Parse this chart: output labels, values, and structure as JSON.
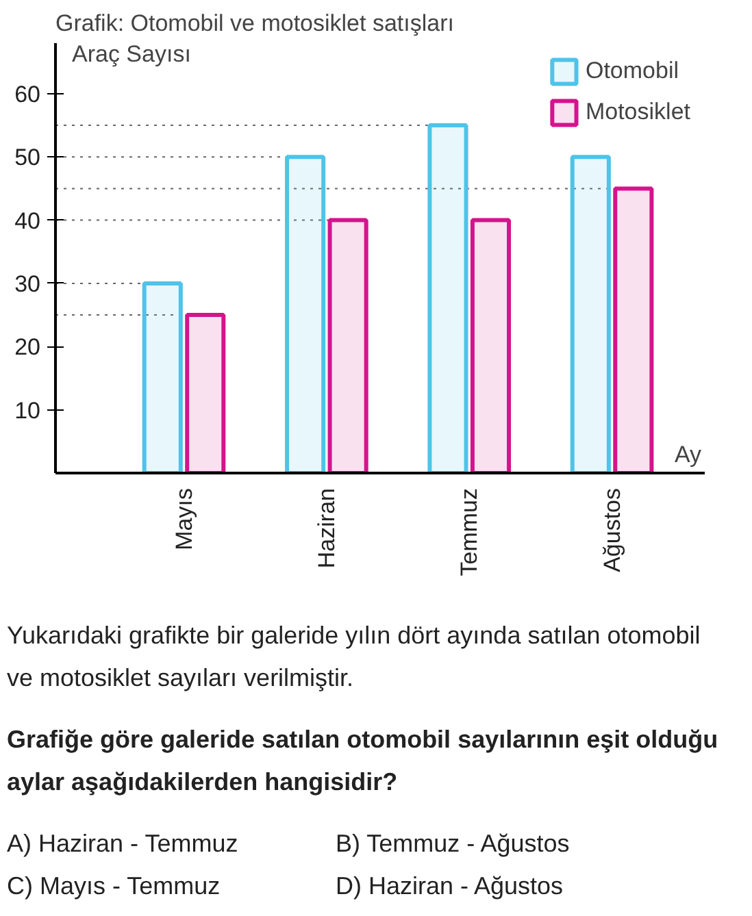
{
  "chart_data": {
    "type": "bar",
    "title": "Grafik: Otomobil ve motosiklet satışları",
    "xlabel": "Ay",
    "ylabel": "Araç Sayısı",
    "categories": [
      "Mayıs",
      "Haziran",
      "Temmuz",
      "Ağustos"
    ],
    "series": [
      {
        "name": "Otomobil",
        "color": "#4fc3e8",
        "values": [
          30,
          50,
          55,
          50
        ]
      },
      {
        "name": "Motosiklet",
        "color": "#d4148c",
        "values": [
          25,
          40,
          40,
          45
        ]
      }
    ],
    "ylim": [
      0,
      68
    ],
    "yticks": [
      10,
      20,
      30,
      40,
      50,
      60
    ],
    "grid": false,
    "legend": "top right",
    "ref_lines": [
      {
        "axis": "y",
        "value": 25,
        "color": "#666666",
        "line_style": "dotted"
      },
      {
        "axis": "y",
        "value": 30,
        "color": "#666666",
        "line_style": "dotted"
      },
      {
        "axis": "y",
        "value": 40,
        "color": "#666666",
        "line_style": "dotted"
      },
      {
        "axis": "y",
        "value": 45,
        "color": "#666666",
        "line_style": "dotted"
      },
      {
        "axis": "y",
        "value": 50,
        "color": "#666666",
        "line_style": "dotted"
      },
      {
        "axis": "y",
        "value": 55,
        "color": "#666666",
        "line_style": "dotted"
      }
    ],
    "annotations": [
      "Yukarıdaki grafikte bir galeride yılın dört ayında satılan otomobil ve motosiklet sayıları verilmiştir.",
      "Grafiğe göre galeride satılan otomobil sayılarının eşit olduğu aylar aşağıdakilerden hangisidir?",
      "A) Haziran - Temmuz",
      "B) Temmuz - Ağustos",
      "C) Mayıs - Temmuz",
      "D) Haziran - Ağustos"
    ]
  }
}
